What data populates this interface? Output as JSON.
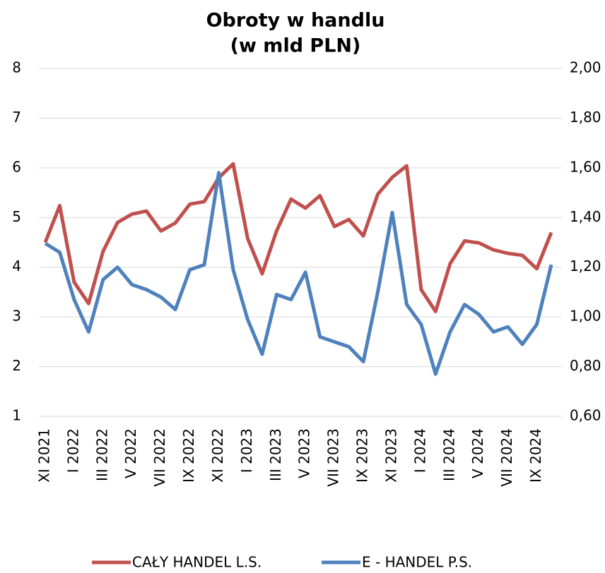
{
  "chart_data": {
    "type": "line",
    "title": "Obroty w handlu",
    "subtitle": "(w mld PLN)",
    "categories": [
      "XI 2021",
      null,
      "I 2022",
      null,
      "III 2022",
      null,
      "V 2022",
      null,
      "VII 2022",
      null,
      "IX 2022",
      null,
      "XI 2022",
      null,
      "I 2023",
      null,
      "III 2023",
      null,
      "V 2023",
      null,
      "VII 2023",
      null,
      "IX 2023",
      null,
      "XI 2023",
      null,
      "I 2024",
      null,
      "III 2024",
      null,
      "V 2024",
      null,
      "VII 2024",
      null,
      "IX 2024",
      null
    ],
    "series": [
      {
        "name": "CAŁY HANDEL L.S.",
        "color": "#c0504d",
        "values": [
          4.5,
          5.24,
          3.7,
          3.27,
          4.32,
          4.9,
          5.07,
          5.13,
          4.73,
          4.89,
          5.27,
          5.32,
          5.8,
          6.08,
          4.58,
          3.87,
          4.73,
          5.37,
          5.19,
          5.44,
          4.82,
          4.96,
          4.63,
          5.47,
          5.81,
          6.04,
          3.55,
          3.11,
          4.07,
          4.53,
          4.49,
          4.35,
          4.28,
          4.24,
          3.97,
          4.7
        ]
      },
      {
        "name": "E - HANDEL P.S.",
        "color": "#4f81bd",
        "axis": "y2",
        "values": [
          1.296,
          1.26,
          1.07,
          0.94,
          1.15,
          1.2,
          1.13,
          1.11,
          1.08,
          1.03,
          1.19,
          1.21,
          1.58,
          1.19,
          0.99,
          0.85,
          1.09,
          1.07,
          1.18,
          0.92,
          0.9,
          0.88,
          0.82,
          1.1,
          1.42,
          1.05,
          0.97,
          0.77,
          0.94,
          1.05,
          1.01,
          0.94,
          0.96,
          0.89,
          0.97,
          1.21
        ]
      }
    ],
    "ylim": [
      1,
      8
    ],
    "yticks": [
      1,
      2,
      3,
      4,
      5,
      6,
      7,
      8
    ],
    "y2lim": [
      0.6,
      2.0
    ],
    "y2ticks": [
      {
        "value": 0.6,
        "label": "0,60"
      },
      {
        "value": 0.8,
        "label": "0,80"
      },
      {
        "value": 1.0,
        "label": "1,00"
      },
      {
        "value": 1.2,
        "label": "1,20"
      },
      {
        "value": 1.4,
        "label": "1,40"
      },
      {
        "value": 1.6,
        "label": "1,60"
      },
      {
        "value": 1.8,
        "label": "1,80"
      },
      {
        "value": 2.0,
        "label": "2,00"
      }
    ],
    "grid": true,
    "legend": "bottom"
  }
}
